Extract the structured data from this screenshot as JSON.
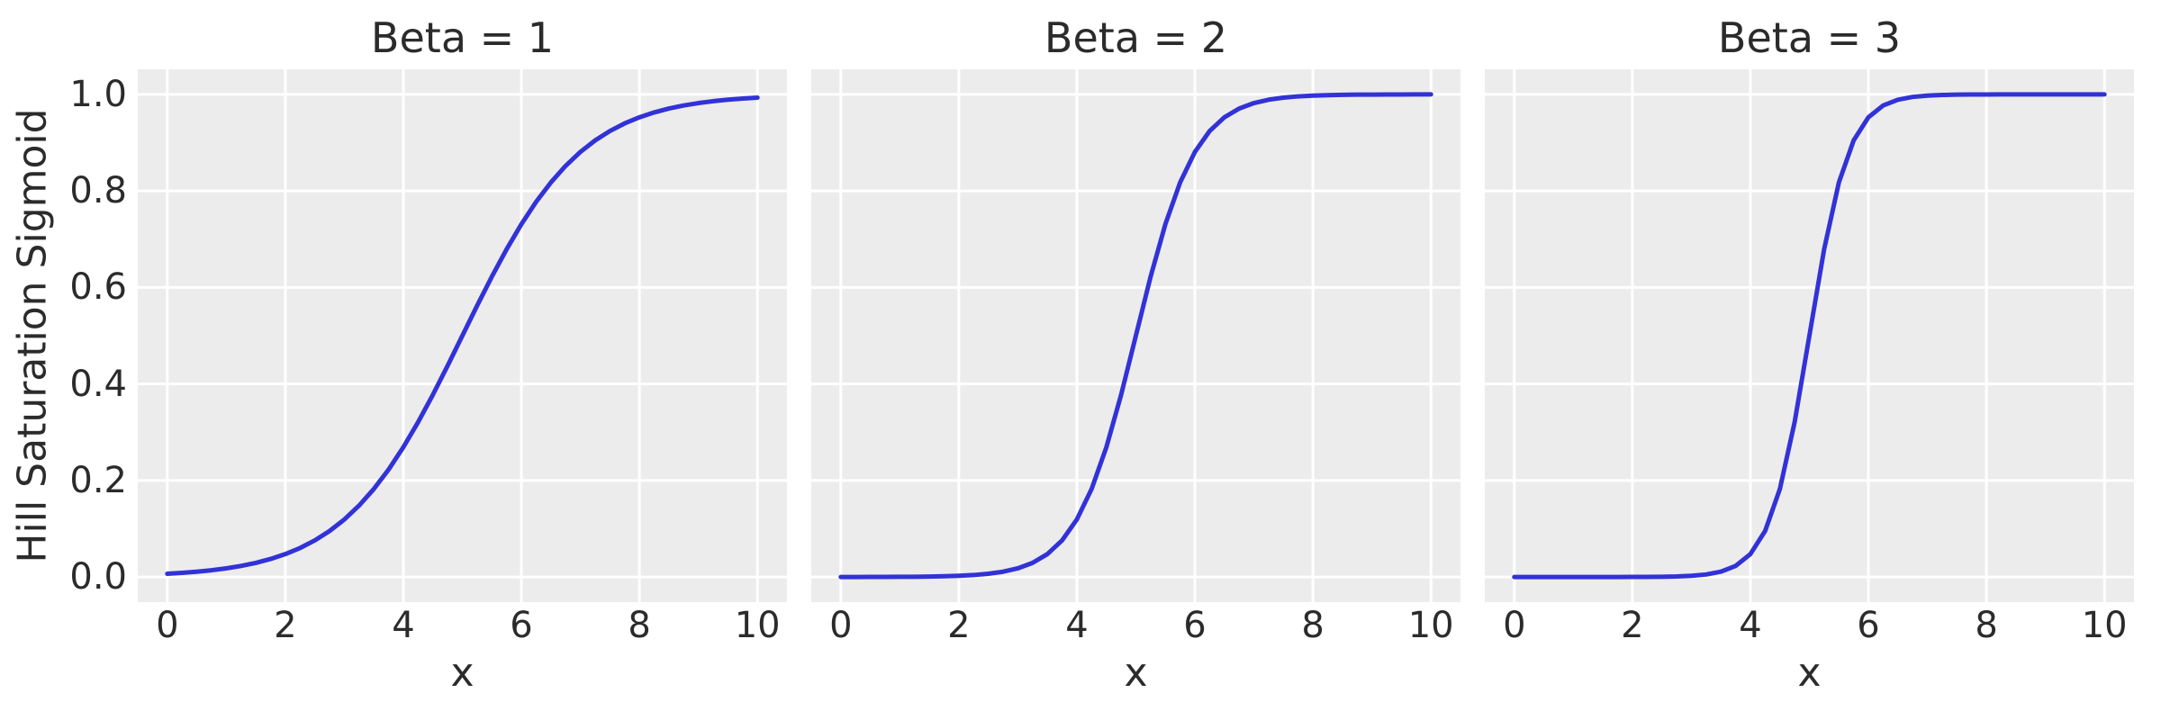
{
  "figure": {
    "background_color": "#ffffff",
    "axes_background_color": "#ececec",
    "grid_color": "#ffffff",
    "line_color": "#3232d8",
    "text_color": "#2b2b2b"
  },
  "chart_data": {
    "type": "line",
    "subplot_titles": [
      "Beta = 1",
      "Beta = 2",
      "Beta = 3"
    ],
    "xlabel": "x",
    "ylabel": "Hill Saturation Sigmoid",
    "xlim": [
      -0.5,
      10.5
    ],
    "ylim": [
      -0.052,
      1.052
    ],
    "xticks": [
      0,
      2,
      4,
      6,
      8,
      10
    ],
    "ytick_labels": [
      "0.0",
      "0.2",
      "0.4",
      "0.6",
      "0.8",
      "1.0"
    ],
    "grid": true,
    "legend_position": "none",
    "x": [
      0,
      0.25,
      0.5,
      0.75,
      1,
      1.25,
      1.5,
      1.75,
      2,
      2.25,
      2.5,
      2.75,
      3,
      3.25,
      3.5,
      3.75,
      4,
      4.25,
      4.5,
      4.75,
      5,
      5.25,
      5.5,
      5.75,
      6,
      6.25,
      6.5,
      6.75,
      7,
      7.25,
      7.5,
      7.75,
      8,
      8.25,
      8.5,
      8.75,
      9,
      9.25,
      9.5,
      9.75,
      10
    ],
    "series": [
      {
        "name": "Beta = 1",
        "beta": 1,
        "values": [
          0.00669,
          0.00858,
          0.01099,
          0.01406,
          0.01799,
          0.02298,
          0.02931,
          0.03733,
          0.04743,
          0.06009,
          0.07586,
          0.09535,
          0.1192,
          0.14805,
          0.18243,
          0.2227,
          0.26894,
          0.32082,
          0.37754,
          0.43782,
          0.5,
          0.56218,
          0.62246,
          0.67918,
          0.73106,
          0.7773,
          0.81757,
          0.85195,
          0.8808,
          0.90465,
          0.92414,
          0.93991,
          0.95257,
          0.96267,
          0.97069,
          0.97702,
          0.98201,
          0.98594,
          0.98901,
          0.99142,
          0.99331
        ]
      },
      {
        "name": "Beta = 2",
        "beta": 2,
        "values": [
          5e-05,
          7e-05,
          0.00012,
          0.0002,
          0.00034,
          0.00055,
          0.00091,
          0.0015,
          0.00247,
          0.00407,
          0.00669,
          0.01099,
          0.01799,
          0.02931,
          0.04743,
          0.07586,
          0.1192,
          0.18243,
          0.26894,
          0.37754,
          0.5,
          0.62246,
          0.73106,
          0.81757,
          0.8808,
          0.92414,
          0.95257,
          0.97069,
          0.98201,
          0.98901,
          0.99331,
          0.99593,
          0.99753,
          0.9985,
          0.99909,
          0.99945,
          0.99966,
          0.9998,
          0.99988,
          0.99993,
          0.99995
        ]
      },
      {
        "name": "Beta = 3",
        "beta": 3,
        "values": [
          0,
          0,
          0,
          0,
          1e-05,
          1e-05,
          3e-05,
          6e-05,
          0.00012,
          0.00026,
          0.00055,
          0.00117,
          0.00247,
          0.00522,
          0.01099,
          0.02298,
          0.04743,
          0.09535,
          0.18243,
          0.32082,
          0.5,
          0.67918,
          0.81757,
          0.90465,
          0.95257,
          0.97702,
          0.98901,
          0.99478,
          0.99753,
          0.99883,
          0.99945,
          0.99974,
          0.99988,
          0.99994,
          0.99997,
          0.99999,
          0.99999,
          1,
          1,
          1,
          1
        ]
      }
    ]
  }
}
